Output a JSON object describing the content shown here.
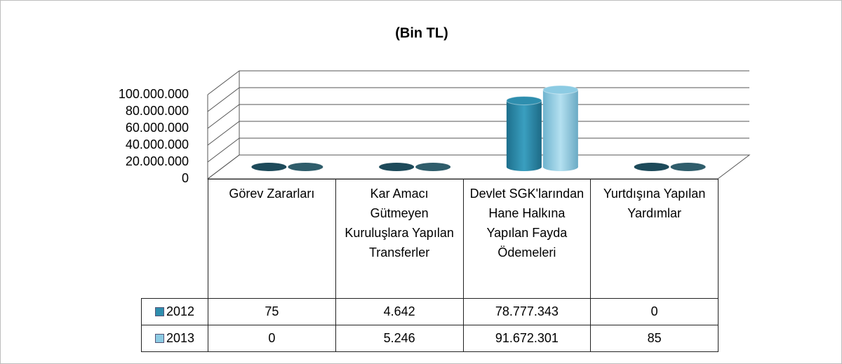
{
  "chart_data": {
    "type": "bar",
    "title": "(Bin TL)",
    "categories": [
      "Görev Zararları",
      "Kar Amacı Gütmeyen Kuruluşlara Yapılan Transferler",
      "Devlet SGK'larından Hane Halkına Yapılan Fayda Ödemeleri",
      "Yurtdışına Yapılan Yardımlar"
    ],
    "series": [
      {
        "name": "2012",
        "color": "#2e8eae",
        "values": [
          75,
          4642,
          78777343,
          0
        ],
        "value_labels": [
          "75",
          "4.642",
          "78.777.343",
          "0"
        ]
      },
      {
        "name": "2013",
        "color": "#8ccbe3",
        "values": [
          0,
          5246,
          91672301,
          85
        ],
        "value_labels": [
          "0",
          "5.246",
          "91.672.301",
          "85"
        ]
      }
    ],
    "ylim": [
      0,
      100000000
    ],
    "yticks": [
      0,
      {
        "value": 20000000,
        "label": "20.000.000"
      },
      {
        "value": 40000000,
        "label": "40.000.000"
      },
      {
        "value": 60000000,
        "label": "60.000.000"
      },
      {
        "value": 80000000,
        "label": "80.000.000"
      },
      {
        "value": 100000000,
        "label": "100.000.000"
      }
    ],
    "grid": true
  }
}
